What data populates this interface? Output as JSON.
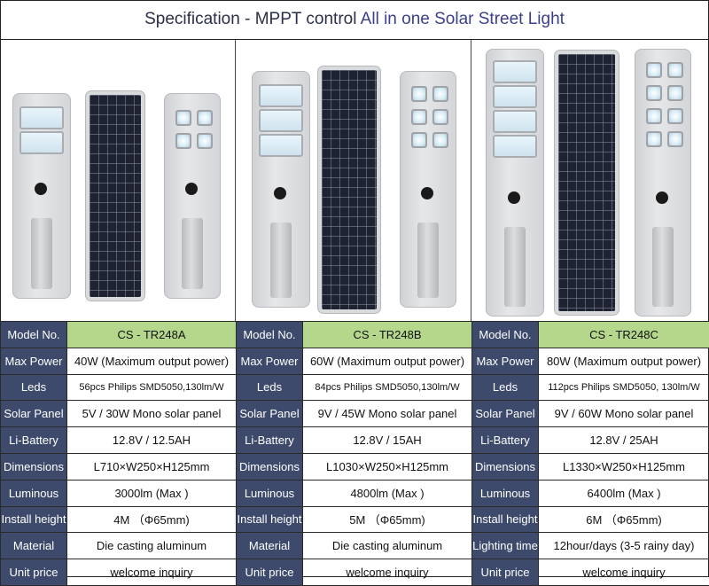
{
  "title": {
    "prefix": "Specification -  MPPT control ",
    "accent": "All in one Solar Street Light"
  },
  "products": [
    {
      "model_label": "Model No.",
      "model": "CS - TR248A",
      "rows": [
        {
          "label": "Max Power",
          "value": "40W (Maximum output power)"
        },
        {
          "label": "Leds",
          "value": "56pcs Philips SMD5050,130lm/W"
        },
        {
          "label": "Solar Panel",
          "value": "5V / 30W Mono solar panel"
        },
        {
          "label": "Li-Battery",
          "value": "12.8V / 12.5AH"
        },
        {
          "label": "Dimensions",
          "value": "L710×W250×H125mm"
        },
        {
          "label": "Luminous",
          "value": "3000lm (Max )"
        },
        {
          "label": "Install height",
          "value": "4M （Φ65mm)"
        },
        {
          "label": "Material",
          "value": "Die casting aluminum"
        },
        {
          "label": "Unit price",
          "value": "welcome inquiry"
        }
      ]
    },
    {
      "model_label": "Model No.",
      "model": "CS - TR248B",
      "rows": [
        {
          "label": "Max Power",
          "value": "60W (Maximum output power)"
        },
        {
          "label": "Leds",
          "value": "84pcs Philips SMD5050,130lm/W"
        },
        {
          "label": "Solar Panel",
          "value": "9V / 45W Mono solar panel"
        },
        {
          "label": "Li-Battery",
          "value": "12.8V / 15AH"
        },
        {
          "label": "Dimensions",
          "value": "L1030×W250×H125mm"
        },
        {
          "label": "Luminous",
          "value": "4800lm (Max )"
        },
        {
          "label": "Install height",
          "value": "5M （Φ65mm)"
        },
        {
          "label": "Material",
          "value": "Die casting aluminum"
        },
        {
          "label": "Unit price",
          "value": "welcome inquiry"
        }
      ]
    },
    {
      "model_label": "Model No.",
      "model": "CS - TR248C",
      "rows": [
        {
          "label": "Max Power",
          "value": "80W (Maximum output power)"
        },
        {
          "label": "Leds",
          "value": "112pcs Philips SMD5050, 130lm/W"
        },
        {
          "label": "Solar Panel",
          "value": "9V / 60W Mono solar panel"
        },
        {
          "label": "Li-Battery",
          "value": "12.8V / 25AH"
        },
        {
          "label": "Dimensions",
          "value": "L1330×W250×H125mm"
        },
        {
          "label": "Luminous",
          "value": "6400lm (Max )"
        },
        {
          "label": "Install height",
          "value": "6M （Φ65mm)"
        },
        {
          "label": "Lighting time",
          "value": "12hour/days (3-5 rainy day)"
        },
        {
          "label": "Unit price",
          "value": "welcome inquiry"
        }
      ]
    }
  ]
}
